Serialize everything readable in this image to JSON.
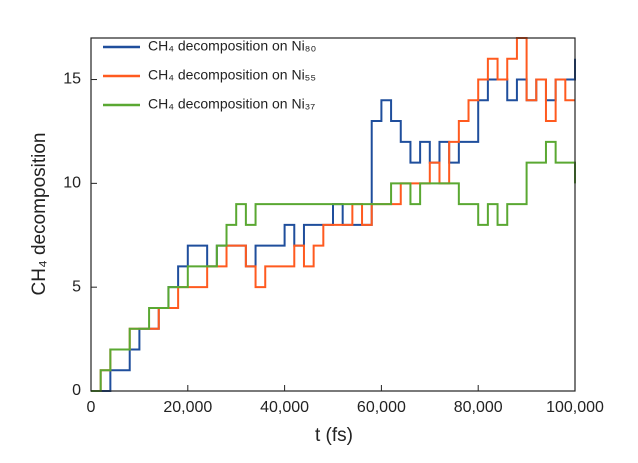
{
  "chart_data": {
    "type": "line",
    "drawstyle": "steps-post",
    "xlabel": "t (fs)",
    "ylabel": "CH₄ decomposition",
    "x": [
      0,
      2000,
      4000,
      6000,
      8000,
      10000,
      12000,
      14000,
      16000,
      18000,
      20000,
      22000,
      24000,
      26000,
      28000,
      30000,
      32000,
      34000,
      36000,
      38000,
      40000,
      42000,
      44000,
      46000,
      48000,
      50000,
      52000,
      54000,
      56000,
      58000,
      60000,
      62000,
      64000,
      66000,
      68000,
      70000,
      72000,
      74000,
      76000,
      78000,
      80000,
      82000,
      84000,
      86000,
      88000,
      90000,
      92000,
      94000,
      96000,
      98000,
      100000
    ],
    "series": [
      {
        "name": "CH₄ decomposition on Ni₈₀",
        "color": "#1f4e9c",
        "values": [
          0,
          0,
          1,
          1,
          2,
          3,
          3,
          4,
          5,
          6,
          7,
          7,
          6,
          7,
          7,
          7,
          6,
          7,
          7,
          7,
          8,
          7,
          8,
          8,
          8,
          9,
          8,
          8,
          8,
          13,
          14,
          13,
          12,
          11,
          12,
          11,
          12,
          11,
          12,
          12,
          14,
          15,
          15,
          14,
          15,
          14,
          15,
          14,
          15,
          15,
          16
        ]
      },
      {
        "name": "CH₄ decomposition on Ni₅₅",
        "color": "#ff5a1f",
        "values": [
          0,
          1,
          2,
          2,
          3,
          3,
          3,
          4,
          4,
          5,
          5,
          5,
          6,
          6,
          7,
          7,
          6,
          5,
          6,
          6,
          6,
          7,
          6,
          7,
          8,
          8,
          8,
          9,
          8,
          9,
          9,
          9,
          10,
          10,
          10,
          11,
          10,
          12,
          13,
          14,
          15,
          16,
          15,
          16,
          17,
          14,
          15,
          13,
          15,
          14,
          14
        ]
      },
      {
        "name": "CH₄ decomposition on Ni₃₇",
        "color": "#5aa832",
        "values": [
          0,
          1,
          2,
          2,
          3,
          3,
          4,
          4,
          5,
          5,
          6,
          6,
          6,
          7,
          8,
          9,
          8,
          9,
          9,
          9,
          9,
          9,
          9,
          9,
          9,
          9,
          9,
          9,
          9,
          9,
          9,
          10,
          10,
          9,
          10,
          10,
          10,
          10,
          9,
          9,
          8,
          9,
          8,
          9,
          9,
          11,
          11,
          12,
          11,
          11,
          10
        ]
      }
    ],
    "xlim": [
      0,
      100000
    ],
    "xticks": [
      0,
      {
        "value": 20000,
        "label": "20,000"
      },
      {
        "value": 40000,
        "label": "40,000"
      },
      {
        "value": 60000,
        "label": "60,000"
      },
      {
        "value": 80000,
        "label": "80,000"
      },
      {
        "value": 100000,
        "label": "100,000"
      }
    ],
    "ylim": [
      0,
      17
    ],
    "yticks": [
      0,
      5,
      10,
      15
    ],
    "legend": "upper left"
  }
}
